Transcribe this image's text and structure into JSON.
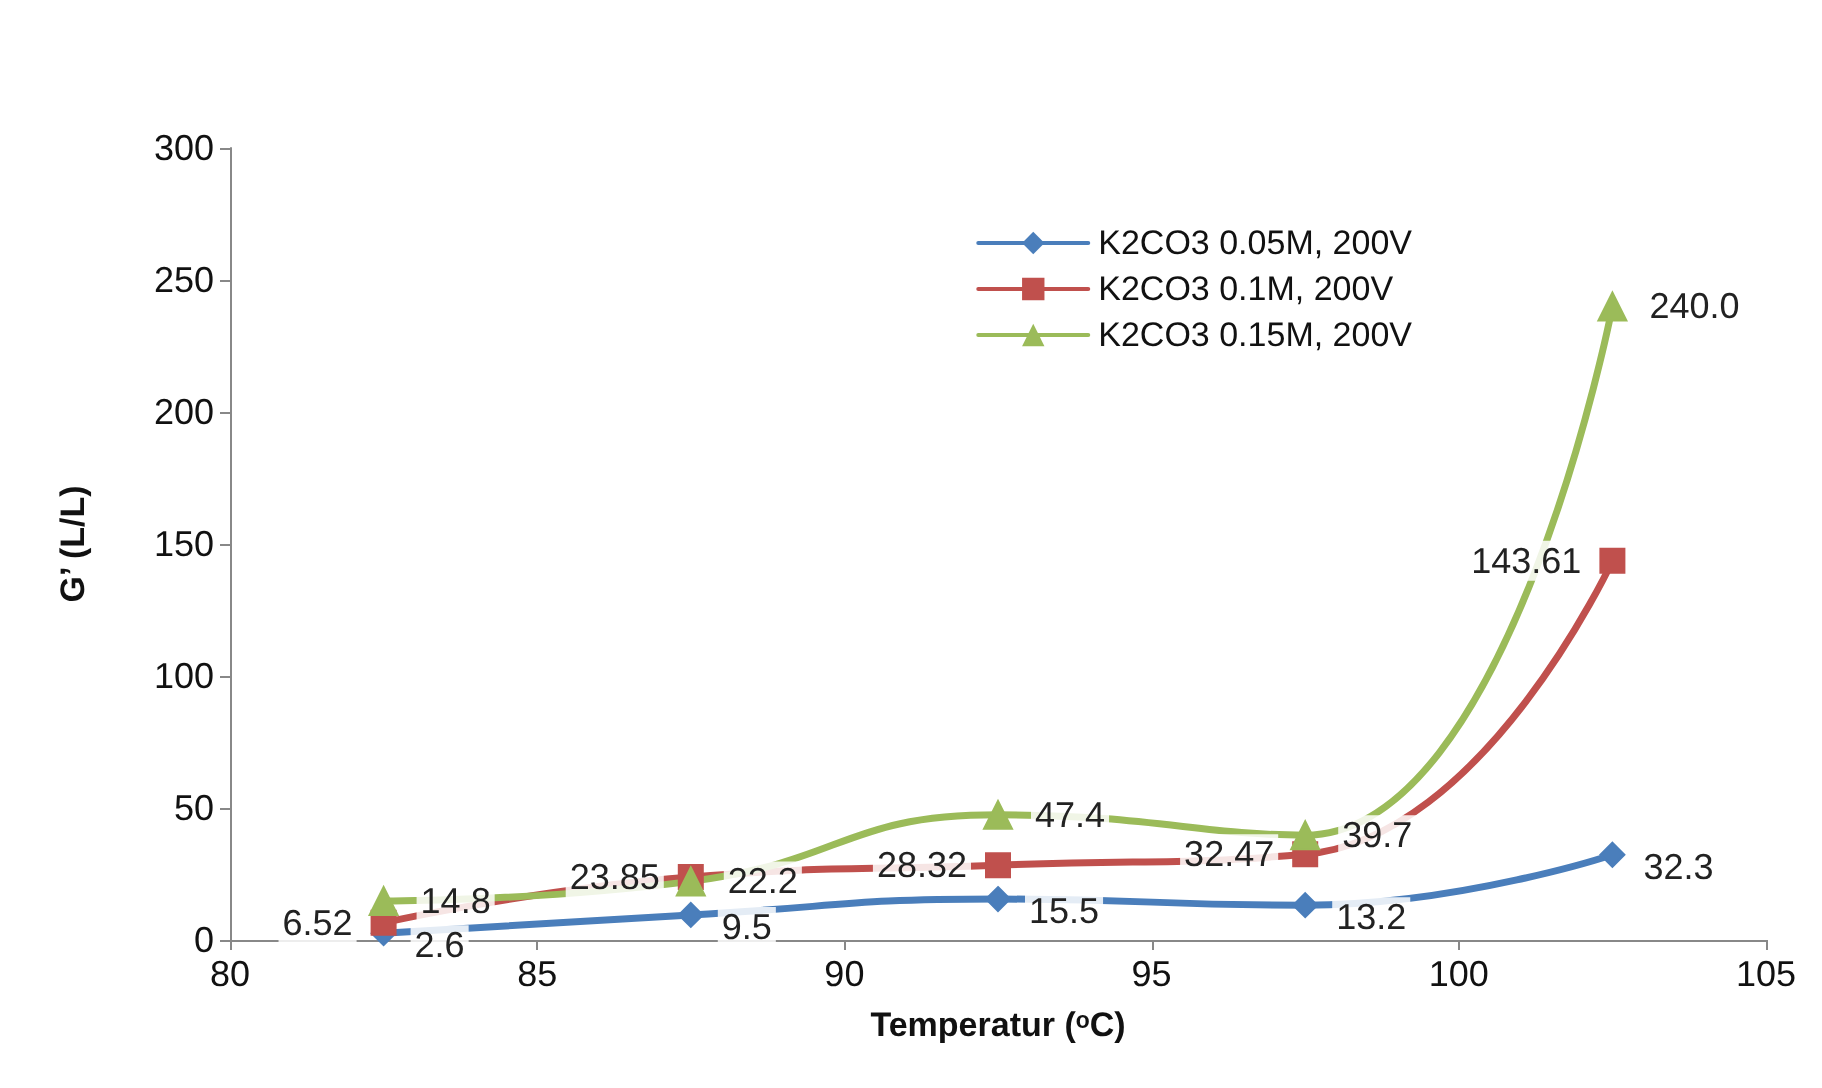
{
  "chart_data": {
    "type": "line",
    "xlabel": "Temperatur (ᵒC)",
    "ylabel": "G’ (L/L)",
    "x": [
      82.5,
      87.5,
      92.5,
      97.5,
      102.5
    ],
    "xlim": [
      80,
      105
    ],
    "xticks": [
      80,
      85,
      90,
      95,
      100,
      105
    ],
    "ylim": [
      0,
      300
    ],
    "yticks": [
      0,
      50,
      100,
      150,
      200,
      250,
      300
    ],
    "grid": false,
    "legend": "top right",
    "series": [
      {
        "name": "K2CO3 0.05M, 200V",
        "color": "#4a7ebb",
        "marker": "diamond",
        "values": [
          2.6,
          9.5,
          15.5,
          13.2,
          32.3
        ],
        "value_labels": [
          "2.6",
          "9.5",
          "15.5",
          "13.2",
          "32.3"
        ]
      },
      {
        "name": "K2CO3 0.1M, 200V",
        "color": "#c0504d",
        "marker": "square",
        "values": [
          6.52,
          23.85,
          28.32,
          32.47,
          143.61
        ],
        "value_labels": [
          "6.52",
          "23.85",
          "28.32",
          "32.47",
          "143.61"
        ]
      },
      {
        "name": "K2CO3 0.15M, 200V",
        "color": "#9bbb59",
        "marker": "triangle",
        "values": [
          14.8,
          22.2,
          47.4,
          39.7,
          240.0
        ],
        "value_labels": [
          "14.8",
          "22.2",
          "47.4",
          "39.7",
          "240.0"
        ]
      }
    ]
  }
}
